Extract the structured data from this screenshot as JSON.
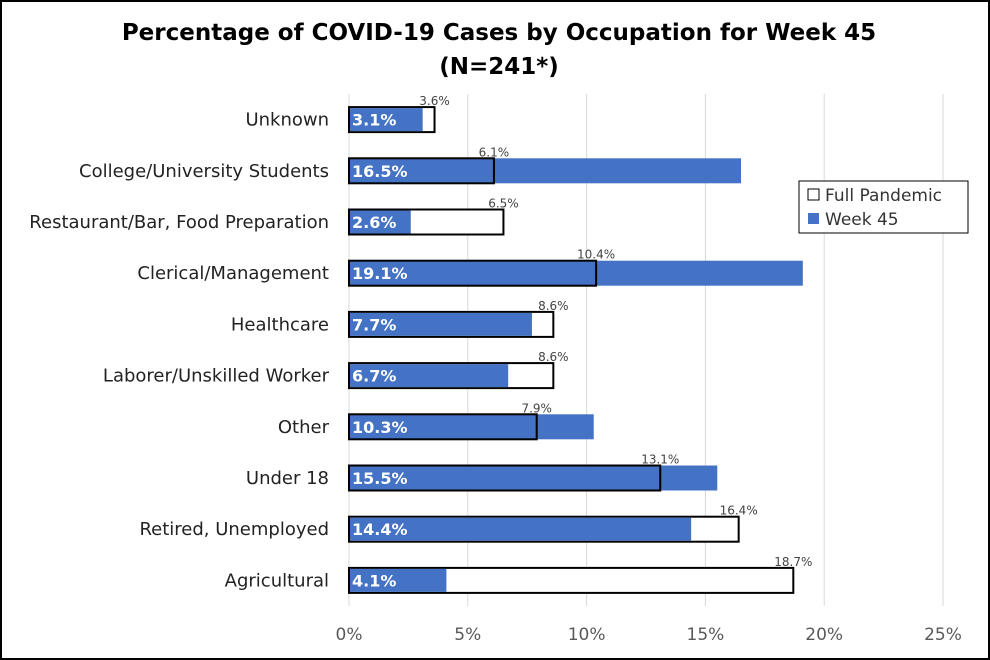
{
  "chart_data": {
    "type": "bar",
    "orientation": "horizontal",
    "title": "Percentage of COVID-19 Cases by Occupation for Week 45",
    "subtitle": "(N=241*)",
    "categories": [
      "Unknown",
      "College/University Students",
      "Restaurant/Bar, Food Preparation",
      "Clerical/Management",
      "Healthcare",
      "Laborer/Unskilled Worker",
      "Other",
      "Under 18",
      "Retired, Unemployed",
      "Agricultural"
    ],
    "series": [
      {
        "name": "Full Pandemic",
        "values": [
          3.6,
          6.1,
          6.5,
          10.4,
          8.6,
          8.6,
          7.9,
          13.1,
          16.4,
          18.7
        ],
        "labels": [
          "3.6%",
          "6.1%",
          "6.5%",
          "10.4%",
          "8.6%",
          "8.6%",
          "7.9%",
          "13.1%",
          "16.4%",
          "18.7%"
        ],
        "color": "#ffffff",
        "border": "#000000"
      },
      {
        "name": "Week 45",
        "values": [
          3.1,
          16.5,
          2.6,
          19.1,
          7.7,
          6.7,
          10.3,
          15.5,
          14.4,
          4.1
        ],
        "labels": [
          "3.1%",
          "16.5%",
          "2.6%",
          "19.1%",
          "7.7%",
          "6.7%",
          "10.3%",
          "15.5%",
          "14.4%",
          "4.1%"
        ],
        "color": "#4472C4"
      }
    ],
    "xlim": [
      0,
      25
    ],
    "xticks": [
      0,
      5,
      10,
      15,
      20,
      25
    ],
    "xtick_labels": [
      "0%",
      "5%",
      "10%",
      "15%",
      "20%",
      "25%"
    ],
    "grid": "vertical",
    "legend_position": "right"
  }
}
